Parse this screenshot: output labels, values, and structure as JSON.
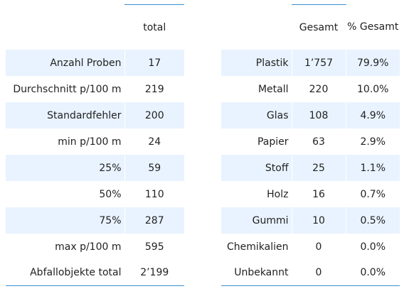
{
  "summary_table": {
    "header": "total",
    "rows": [
      {
        "label": "Anzahl Proben",
        "value": "17"
      },
      {
        "label": "Durchschnitt p/100 m",
        "value": "219"
      },
      {
        "label": "Standardfehler",
        "value": "200"
      },
      {
        "label": "min p/100 m",
        "value": "24"
      },
      {
        "label": "25%",
        "value": "59"
      },
      {
        "label": "50%",
        "value": "110"
      },
      {
        "label": "75%",
        "value": "287"
      },
      {
        "label": "max p/100 m",
        "value": "595"
      },
      {
        "label": "Abfallobjekte total",
        "value": "2’199"
      }
    ]
  },
  "material_table": {
    "headers": [
      "Gesamt",
      "% Gesamt"
    ],
    "rows": [
      {
        "label": "Plastik",
        "total": "1’757",
        "percent": "79.9%"
      },
      {
        "label": "Metall",
        "total": "220",
        "percent": "10.0%"
      },
      {
        "label": "Glas",
        "total": "108",
        "percent": "4.9%"
      },
      {
        "label": "Papier",
        "total": "63",
        "percent": "2.9%"
      },
      {
        "label": "Stoff",
        "total": "25",
        "percent": "1.1%"
      },
      {
        "label": "Holz",
        "total": "16",
        "percent": "0.7%"
      },
      {
        "label": "Gummi",
        "total": "10",
        "percent": "0.5%"
      },
      {
        "label": "Chemikalien",
        "total": "0",
        "percent": "0.0%"
      },
      {
        "label": "Unbekannt",
        "total": "0",
        "percent": "0.0%"
      }
    ]
  },
  "colors": {
    "stripe": "#e9f3ff",
    "rule": "#3a8fd1",
    "text": "#222222"
  }
}
